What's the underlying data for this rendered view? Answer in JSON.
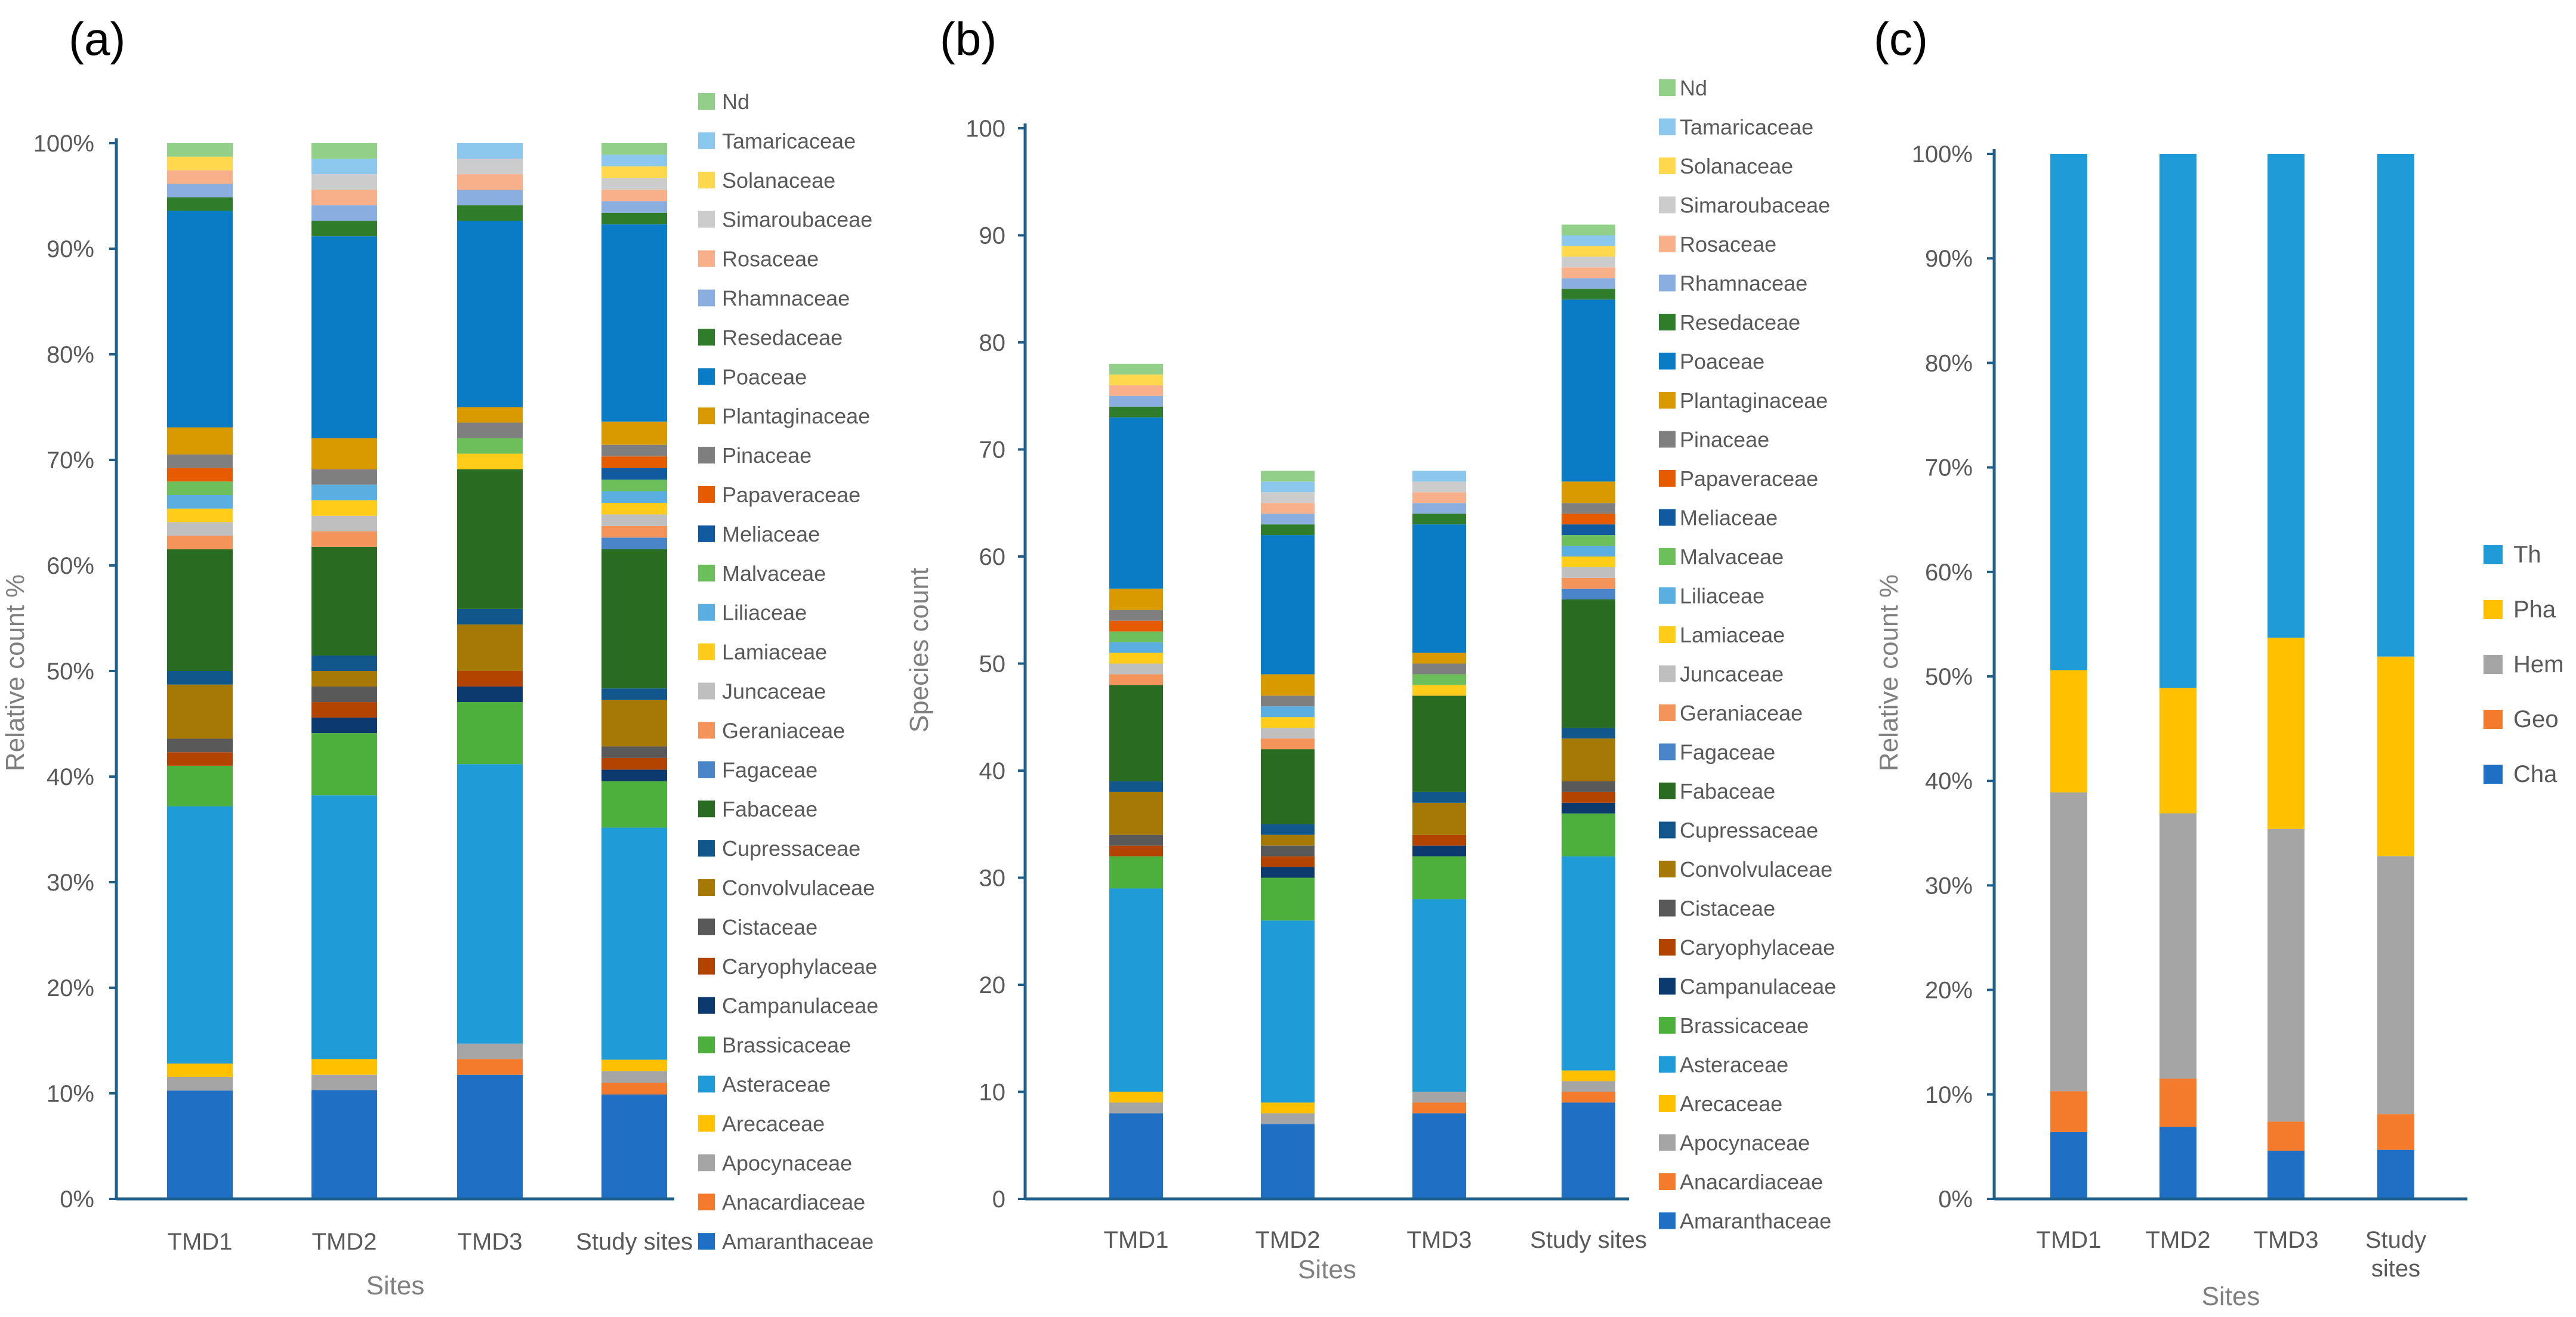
{
  "families": [
    {
      "name": "Amaranthaceae",
      "color": "#1f6fc5"
    },
    {
      "name": "Anacardiaceae",
      "color": "#f47b2c"
    },
    {
      "name": "Apocynaceae",
      "color": "#a5a5a5"
    },
    {
      "name": "Arecaceae",
      "color": "#ffc000"
    },
    {
      "name": "Asteraceae",
      "color": "#1f9bd7"
    },
    {
      "name": "Brassicaceae",
      "color": "#4daf3c"
    },
    {
      "name": "Campanulaceae",
      "color": "#0d3a6e"
    },
    {
      "name": "Caryophylaceae",
      "color": "#b34400"
    },
    {
      "name": "Cistaceae",
      "color": "#595959"
    },
    {
      "name": "Convolvulaceae",
      "color": "#a67806"
    },
    {
      "name": "Cupressaceae",
      "color": "#11578c"
    },
    {
      "name": "Fabaceae",
      "color": "#2a6b22"
    },
    {
      "name": "Fagaceae",
      "color": "#4a84c9"
    },
    {
      "name": "Geraniaceae",
      "color": "#f4935a"
    },
    {
      "name": "Juncaceae",
      "color": "#bfbfbf"
    },
    {
      "name": "Lamiaceae",
      "color": "#ffcc1a"
    },
    {
      "name": "Liliaceae",
      "color": "#5aaee0"
    },
    {
      "name": "Malvaceae",
      "color": "#6cbf5a"
    },
    {
      "name": "Meliaceae",
      "color": "#125aa0"
    },
    {
      "name": "Papaveraceae",
      "color": "#e65a00"
    },
    {
      "name": "Pinaceae",
      "color": "#7f7f7f"
    },
    {
      "name": "Plantaginaceae",
      "color": "#d99a00"
    },
    {
      "name": "Poaceae",
      "color": "#0a7cc6"
    },
    {
      "name": "Resedaceae",
      "color": "#2f7d2a"
    },
    {
      "name": "Rhamnaceae",
      "color": "#8aaee0"
    },
    {
      "name": "Rosaceae",
      "color": "#f8b08a"
    },
    {
      "name": "Simaroubaceae",
      "color": "#cccccc"
    },
    {
      "name": "Solanaceae",
      "color": "#ffd84d"
    },
    {
      "name": "Tamaricaceae",
      "color": "#8cc8ee"
    },
    {
      "name": "Nd",
      "color": "#92d08a"
    }
  ],
  "chart_data": [
    {
      "panel": "(a)",
      "type": "bar",
      "stacked": true,
      "normalized": true,
      "categories": [
        "TMD1",
        "TMD2",
        "TMD3",
        "Study sites"
      ],
      "xlabel": "Sites",
      "ylabel": "Relative count %",
      "yticks": [
        "0%",
        "10%",
        "20%",
        "30%",
        "40%",
        "50%",
        "60%",
        "70%",
        "80%",
        "90%",
        "100%"
      ],
      "ylim": [
        0,
        100
      ],
      "legend_position": "right",
      "series": [
        {
          "name": "Amaranthaceae",
          "values": [
            8,
            7,
            8,
            9
          ]
        },
        {
          "name": "Anacardiaceae",
          "values": [
            0,
            0,
            1,
            1
          ]
        },
        {
          "name": "Apocynaceae",
          "values": [
            1,
            1,
            1,
            1
          ]
        },
        {
          "name": "Arecaceae",
          "values": [
            1,
            1,
            0,
            1
          ]
        },
        {
          "name": "Asteraceae",
          "values": [
            19,
            17,
            18,
            20
          ]
        },
        {
          "name": "Brassicaceae",
          "values": [
            3,
            4,
            4,
            4
          ]
        },
        {
          "name": "Campanulaceae",
          "values": [
            0,
            1,
            1,
            1
          ]
        },
        {
          "name": "Caryophylaceae",
          "values": [
            1,
            1,
            1,
            1
          ]
        },
        {
          "name": "Cistaceae",
          "values": [
            1,
            1,
            0,
            1
          ]
        },
        {
          "name": "Convolvulaceae",
          "values": [
            4,
            1,
            3,
            4
          ]
        },
        {
          "name": "Cupressaceae",
          "values": [
            1,
            1,
            1,
            1
          ]
        },
        {
          "name": "Fabaceae",
          "values": [
            9,
            7,
            9,
            12
          ]
        },
        {
          "name": "Fagaceae",
          "values": [
            0,
            0,
            0,
            1
          ]
        },
        {
          "name": "Geraniaceae",
          "values": [
            1,
            1,
            0,
            1
          ]
        },
        {
          "name": "Juncaceae",
          "values": [
            1,
            1,
            0,
            1
          ]
        },
        {
          "name": "Lamiaceae",
          "values": [
            1,
            1,
            1,
            1
          ]
        },
        {
          "name": "Liliaceae",
          "values": [
            1,
            1,
            0,
            1
          ]
        },
        {
          "name": "Malvaceae",
          "values": [
            1,
            0,
            1,
            1
          ]
        },
        {
          "name": "Meliaceae",
          "values": [
            0,
            0,
            0,
            1
          ]
        },
        {
          "name": "Papaveraceae",
          "values": [
            1,
            0,
            0,
            1
          ]
        },
        {
          "name": "Pinaceae",
          "values": [
            1,
            1,
            1,
            1
          ]
        },
        {
          "name": "Plantaginaceae",
          "values": [
            2,
            2,
            1,
            2
          ]
        },
        {
          "name": "Poaceae",
          "values": [
            16,
            13,
            12,
            17
          ]
        },
        {
          "name": "Resedaceae",
          "values": [
            1,
            1,
            1,
            1
          ]
        },
        {
          "name": "Rhamnaceae",
          "values": [
            1,
            1,
            1,
            1
          ]
        },
        {
          "name": "Rosaceae",
          "values": [
            1,
            1,
            1,
            1
          ]
        },
        {
          "name": "Simaroubaceae",
          "values": [
            0,
            1,
            1,
            1
          ]
        },
        {
          "name": "Solanaceae",
          "values": [
            1,
            0,
            0,
            1
          ]
        },
        {
          "name": "Tamaricaceae",
          "values": [
            0,
            1,
            1,
            1
          ]
        },
        {
          "name": "Nd",
          "values": [
            1,
            1,
            0,
            1
          ]
        }
      ]
    },
    {
      "panel": "(b)",
      "type": "bar",
      "stacked": true,
      "categories": [
        "TMD1",
        "TMD2",
        "TMD3",
        "Study sites"
      ],
      "xlabel": "Sites",
      "ylabel": "Species count",
      "yticks": [
        "0",
        "10",
        "20",
        "30",
        "40",
        "50",
        "60",
        "70",
        "80",
        "90",
        "100"
      ],
      "ylim": [
        0,
        100
      ],
      "legend_position": "right",
      "series": [
        {
          "name": "Amaranthaceae",
          "values": [
            8,
            7,
            8,
            9
          ]
        },
        {
          "name": "Anacardiaceae",
          "values": [
            0,
            0,
            1,
            1
          ]
        },
        {
          "name": "Apocynaceae",
          "values": [
            1,
            1,
            1,
            1
          ]
        },
        {
          "name": "Arecaceae",
          "values": [
            1,
            1,
            0,
            1
          ]
        },
        {
          "name": "Asteraceae",
          "values": [
            19,
            17,
            18,
            20
          ]
        },
        {
          "name": "Brassicaceae",
          "values": [
            3,
            4,
            4,
            4
          ]
        },
        {
          "name": "Campanulaceae",
          "values": [
            0,
            1,
            1,
            1
          ]
        },
        {
          "name": "Caryophylaceae",
          "values": [
            1,
            1,
            1,
            1
          ]
        },
        {
          "name": "Cistaceae",
          "values": [
            1,
            1,
            0,
            1
          ]
        },
        {
          "name": "Convolvulaceae",
          "values": [
            4,
            1,
            3,
            4
          ]
        },
        {
          "name": "Cupressaceae",
          "values": [
            1,
            1,
            1,
            1
          ]
        },
        {
          "name": "Fabaceae",
          "values": [
            9,
            7,
            9,
            12
          ]
        },
        {
          "name": "Fagaceae",
          "values": [
            0,
            0,
            0,
            1
          ]
        },
        {
          "name": "Geraniaceae",
          "values": [
            1,
            1,
            0,
            1
          ]
        },
        {
          "name": "Juncaceae",
          "values": [
            1,
            1,
            0,
            1
          ]
        },
        {
          "name": "Lamiaceae",
          "values": [
            1,
            1,
            1,
            1
          ]
        },
        {
          "name": "Liliaceae",
          "values": [
            1,
            1,
            0,
            1
          ]
        },
        {
          "name": "Malvaceae",
          "values": [
            1,
            0,
            1,
            1
          ]
        },
        {
          "name": "Meliaceae",
          "values": [
            0,
            0,
            0,
            1
          ]
        },
        {
          "name": "Papaveraceae",
          "values": [
            1,
            0,
            0,
            1
          ]
        },
        {
          "name": "Pinaceae",
          "values": [
            1,
            1,
            1,
            1
          ]
        },
        {
          "name": "Plantaginaceae",
          "values": [
            2,
            2,
            1,
            2
          ]
        },
        {
          "name": "Poaceae",
          "values": [
            16,
            13,
            12,
            17
          ]
        },
        {
          "name": "Resedaceae",
          "values": [
            1,
            1,
            1,
            1
          ]
        },
        {
          "name": "Rhamnaceae",
          "values": [
            1,
            1,
            1,
            1
          ]
        },
        {
          "name": "Rosaceae",
          "values": [
            1,
            1,
            1,
            1
          ]
        },
        {
          "name": "Simaroubaceae",
          "values": [
            0,
            1,
            1,
            1
          ]
        },
        {
          "name": "Solanaceae",
          "values": [
            1,
            0,
            0,
            1
          ]
        },
        {
          "name": "Tamaricaceae",
          "values": [
            0,
            1,
            1,
            1
          ]
        },
        {
          "name": "Nd",
          "values": [
            1,
            1,
            0,
            1
          ]
        }
      ]
    },
    {
      "panel": "(c)",
      "type": "bar",
      "stacked": true,
      "normalized": true,
      "categories": [
        "TMD1",
        "TMD2",
        "TMD3",
        "Study sites"
      ],
      "xlabel": "Sites",
      "ylabel": "Relative count %",
      "yticks": [
        "0%",
        "10%",
        "20%",
        "30%",
        "40%",
        "50%",
        "60%",
        "70%",
        "80%",
        "90%",
        "100%"
      ],
      "ylim": [
        0,
        100
      ],
      "legend_position": "right",
      "series": [
        {
          "name": "Cha",
          "color": "#1f6fc5",
          "values": [
            6.4,
            6.9,
            4.6,
            4.7
          ]
        },
        {
          "name": "Geo",
          "color": "#f47b2c",
          "values": [
            3.9,
            4.6,
            2.8,
            3.4
          ]
        },
        {
          "name": "Hem",
          "color": "#a5a5a5",
          "values": [
            28.6,
            25.4,
            28.0,
            24.7
          ]
        },
        {
          "name": "Pha",
          "color": "#ffc000",
          "values": [
            11.7,
            12.0,
            18.3,
            19.1
          ]
        },
        {
          "name": "Th",
          "color": "#1f9bd7",
          "values": [
            49.4,
            51.1,
            46.3,
            48.1
          ]
        }
      ]
    }
  ]
}
